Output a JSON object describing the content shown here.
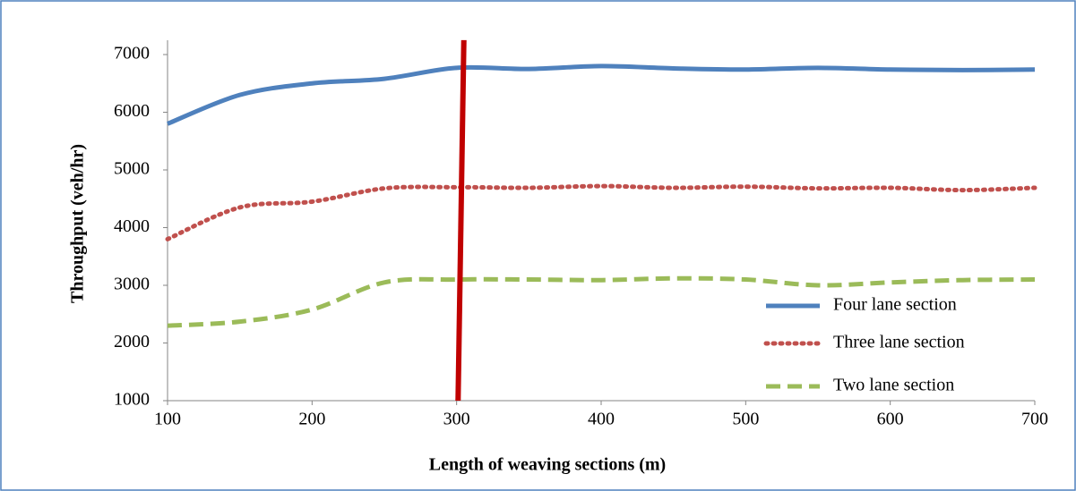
{
  "chart_data": {
    "type": "line",
    "x_label": "Length of weaving sections (m)",
    "y_label": "Throughput (veh/hr)",
    "x": [
      100,
      150,
      200,
      250,
      300,
      350,
      400,
      450,
      500,
      550,
      600,
      650,
      700
    ],
    "series": [
      {
        "name": "Four lane section",
        "color": "#4f81bd",
        "style": "solid",
        "values": [
          5800,
          6300,
          6500,
          6580,
          6770,
          6750,
          6800,
          6760,
          6740,
          6770,
          6740,
          6730,
          6740
        ]
      },
      {
        "name": "Three lane section",
        "color": "#c0504d",
        "style": "dotted",
        "values": [
          3800,
          4350,
          4450,
          4680,
          4700,
          4690,
          4720,
          4690,
          4710,
          4680,
          4690,
          4650,
          4690
        ]
      },
      {
        "name": "Two lane section",
        "color": "#9bbb59",
        "style": "dashed",
        "values": [
          2300,
          2370,
          2580,
          3050,
          3100,
          3100,
          3090,
          3120,
          3100,
          3000,
          3050,
          3090,
          3100
        ]
      }
    ],
    "reference_line": {
      "color": "#c00000",
      "x": [
        301,
        305
      ],
      "y": [
        1000,
        7250
      ]
    },
    "xlim": [
      100,
      700
    ],
    "xticks": [
      100,
      200,
      300,
      400,
      500,
      600,
      700
    ],
    "ylim": [
      1000,
      7000
    ],
    "yticks": [
      1000,
      2000,
      3000,
      4000,
      5000,
      6000,
      7000
    ],
    "grid": false,
    "legend": "lower right"
  }
}
